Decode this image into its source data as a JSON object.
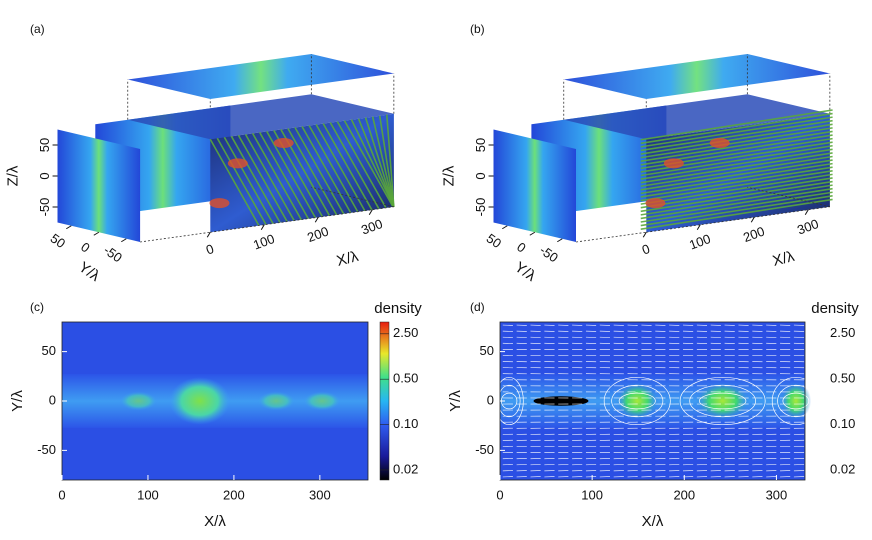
{
  "chart_data": [
    {
      "type": "surface3d",
      "label": "(a)",
      "xlabel": "X/λ",
      "ylabel": "Y/λ",
      "zlabel": "Z/λ",
      "xlim": [
        0,
        340
      ],
      "ylim": [
        -75,
        75
      ],
      "zlim": [
        -75,
        75
      ],
      "xticks": [
        0,
        100,
        200,
        300
      ],
      "yticks": [
        50,
        0,
        -50
      ],
      "zticks": [
        50,
        0,
        -50
      ]
    },
    {
      "type": "surface3d",
      "label": "(b)",
      "xlabel": "X/λ",
      "ylabel": "Y/λ",
      "zlabel": "Z/λ",
      "xlim": [
        0,
        340
      ],
      "ylim": [
        -75,
        75
      ],
      "zlim": [
        -75,
        75
      ],
      "xticks": [
        0,
        100,
        200,
        300
      ],
      "yticks": [
        50,
        0,
        -50
      ],
      "zticks": [
        50,
        0,
        -50
      ]
    },
    {
      "type": "heatmap",
      "label": "(c)",
      "xlabel": "X/λ",
      "ylabel": "Y/λ",
      "xlim": [
        0,
        356
      ],
      "ylim": [
        -80,
        80
      ],
      "xticks": [
        0,
        100,
        200,
        300
      ],
      "yticks": [
        -50,
        0,
        50
      ],
      "streamlines": false,
      "colorbar": {
        "label": "density",
        "log": true,
        "show_bar": true,
        "lim": [
          0.014,
          3.8
        ],
        "ticks": [
          {
            "value": 0.02,
            "label": "0.02"
          },
          {
            "value": 0.1,
            "label": "0.10"
          },
          {
            "value": 0.5,
            "label": "0.50"
          },
          {
            "value": 2.5,
            "label": "2.50"
          }
        ]
      }
    },
    {
      "type": "heatmap",
      "label": "(d)",
      "xlabel": "X/λ",
      "ylabel": "Y/λ",
      "xlim": [
        0,
        331
      ],
      "ylim": [
        -80,
        80
      ],
      "xticks": [
        0,
        100,
        200,
        300
      ],
      "yticks": [
        -50,
        0,
        50
      ],
      "streamlines": true,
      "colorbar": {
        "label": "density",
        "log": true,
        "show_bar": false,
        "lim": [
          0.014,
          3.8
        ],
        "ticks": [
          {
            "value": 0.02,
            "label": "0.02"
          },
          {
            "value": 0.1,
            "label": "0.10"
          },
          {
            "value": 0.5,
            "label": "0.50"
          },
          {
            "value": 2.5,
            "label": "2.50"
          }
        ]
      }
    }
  ]
}
